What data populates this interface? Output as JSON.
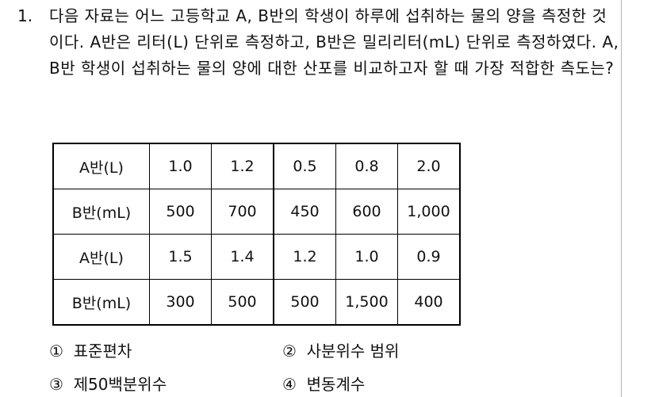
{
  "question": {
    "number": "1.",
    "text": "다음 자료는 어느 고등학교 A, B반의 학생이 하루에 섭취하는 물의 양을 측정한 것이다. A반은 리터(L) 단위로 측정하고, B반은 밀리리터(mL) 단위로 측정하였다. A, B반 학생이 섭취하는 물의 양에 대한 산포를 비교하고자 할 때 가장 적합한 측도는?"
  },
  "table": {
    "rows": [
      {
        "label": "A반(L)",
        "values": [
          "1.0",
          "1.2",
          "0.5",
          "0.8",
          "2.0"
        ]
      },
      {
        "label": "B반(mL)",
        "values": [
          "500",
          "700",
          "450",
          "600",
          "1,000"
        ]
      },
      {
        "label": "A반(L)",
        "values": [
          "1.5",
          "1.4",
          "1.2",
          "1.0",
          "0.9"
        ]
      },
      {
        "label": "B반(mL)",
        "values": [
          "300",
          "500",
          "500",
          "1,500",
          "400"
        ]
      }
    ]
  },
  "options": [
    {
      "marker": "①",
      "text": "표준편차"
    },
    {
      "marker": "②",
      "text": "사분위수 범위"
    },
    {
      "marker": "③",
      "text": "제50백분위수"
    },
    {
      "marker": "④",
      "text": "변동계수"
    }
  ]
}
